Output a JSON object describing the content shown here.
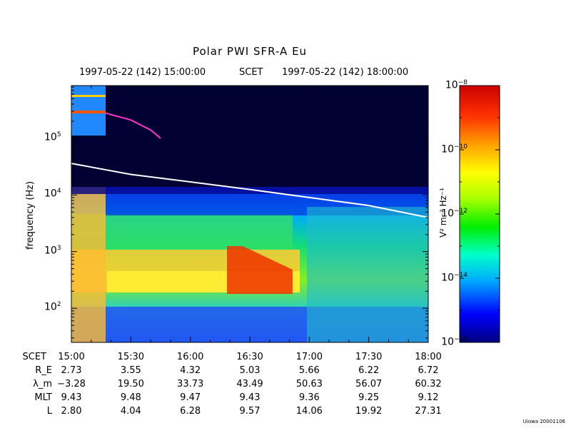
{
  "title": "Polar PWI SFR-A Eu",
  "header": {
    "start": "1997-05-22 (142) 15:00:00",
    "mid": "SCET",
    "end": "1997-05-22 (142) 18:00:00"
  },
  "y_axis": {
    "label": "frequency (Hz)",
    "ticks": [
      {
        "exp": "2",
        "value": 100
      },
      {
        "exp": "3",
        "value": 1000
      },
      {
        "exp": "4",
        "value": 10000
      },
      {
        "exp": "5",
        "value": 100000
      }
    ],
    "range": [
      25,
      850000
    ],
    "scale": "log"
  },
  "colorbar": {
    "label": "V² m⁻² Hz⁻¹",
    "ticks": [
      {
        "exp": "−8",
        "value": -8
      },
      {
        "exp": "−10",
        "value": -10
      },
      {
        "exp": "−12",
        "value": -12
      },
      {
        "exp": "−14",
        "value": -14
      },
      {
        "exp": "−16",
        "value": -16
      }
    ],
    "range": [
      -16,
      -8
    ],
    "colors": [
      "#00007f",
      "#0000ff",
      "#00aaff",
      "#00ffcc",
      "#00ee00",
      "#aaff00",
      "#ffff00",
      "#ffaa00",
      "#ff3300",
      "#cc0000"
    ]
  },
  "ephemeris": {
    "rows": [
      {
        "label": "SCET",
        "values": [
          "15:00",
          "15:30",
          "16:00",
          "16:30",
          "17:00",
          "17:30",
          "18:00"
        ]
      },
      {
        "label": "R_E",
        "values": [
          "2.73",
          "3.55",
          "4.32",
          "5.03",
          "5.66",
          "6.22",
          "6.72"
        ]
      },
      {
        "label": "λ_m",
        "values": [
          "−3.28",
          "19.50",
          "33.73",
          "43.49",
          "50.63",
          "56.07",
          "60.32"
        ]
      },
      {
        "label": "MLT",
        "values": [
          "9.43",
          "9.48",
          "9.47",
          "9.43",
          "9.36",
          "9.25",
          "9.12"
        ]
      },
      {
        "label": "L",
        "values": [
          "2.80",
          "4.04",
          "6.28",
          "9.57",
          "14.06",
          "19.92",
          "27.31"
        ]
      }
    ]
  },
  "credit": "Uiowa 20001106",
  "chart_data": {
    "type": "heatmap",
    "title": "Polar PWI SFR-A Eu",
    "xlabel": "SCET",
    "ylabel": "frequency (Hz)",
    "x": [
      "15:00",
      "15:30",
      "16:00",
      "16:30",
      "17:00",
      "17:30",
      "18:00"
    ],
    "xlim": [
      "15:00",
      "18:00"
    ],
    "ylim": [
      25,
      850000
    ],
    "yscale": "log",
    "zlabel": "V² m⁻² Hz⁻¹",
    "zlim": [
      1e-16,
      1e-08
    ],
    "zscale": "log",
    "series": [
      {
        "x": [
          "15:00",
          "15:30",
          "16:00",
          "16:30",
          "17:00",
          "17:30",
          "18:00"
        ],
        "y": [
          36000,
          23000,
          17000,
          12500,
          9000,
          6500,
          4000
        ]
      },
      {
        "x": [
          "15:17",
          "15:30",
          "15:40",
          "15:45"
        ],
        "y": [
          280000,
          210000,
          140000,
          100000
        ]
      }
    ]
  }
}
